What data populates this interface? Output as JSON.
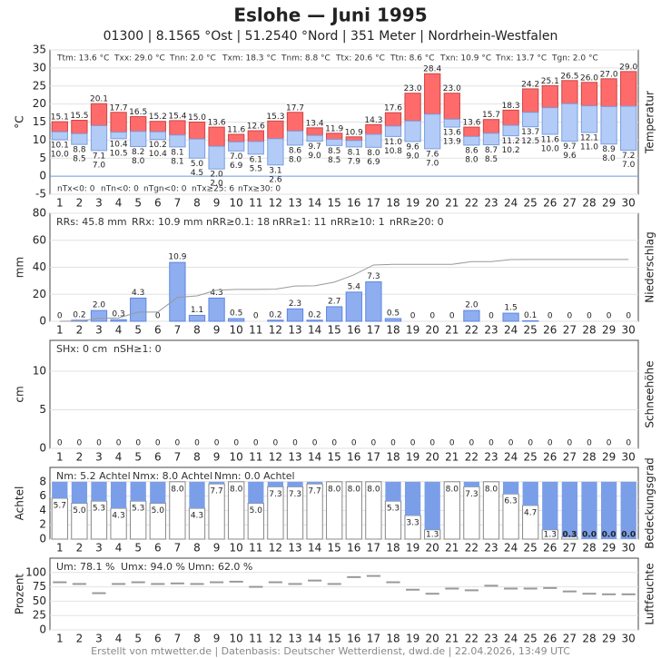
{
  "title": "Eslohe  —  Juni 1995",
  "subtitle": "01300  |  8.1565 °Ost  |  51.2540 °Nord  |  351 Meter  |  Nordrhein-Westfalen",
  "footer": "Erstellt von mtwetter.de | Datenbasis: Deutscher Wetterdienst, dwd.de | 22.04.2026, 13:49 UTC",
  "chart_data": [
    {
      "type": "rangebar",
      "title": "Temperatur",
      "ylabel": "°C",
      "ylim": [
        -5,
        35
      ],
      "yticks": [
        -5,
        0,
        5,
        10,
        15,
        20,
        25,
        30,
        35
      ],
      "grid": true,
      "annotations": [
        "Ttm: 13.6 °C",
        "Txx: 29.0 °C",
        "Tnn: 2.0 °C",
        "Txm: 18.3 °C",
        "Tnm: 8.8 °C",
        "Ttx: 20.6 °C",
        "Ttn: 8.6 °C",
        "Txn: 10.9 °C",
        "Tnx: 13.7 °C",
        "Tgn: 2.0 °C"
      ],
      "annotations_bottom": [
        "nTx<0: 0",
        "nTn<0: 0",
        "nTgn<0: 0",
        "nTx≥25: 6",
        "nTx≥30: 0"
      ],
      "categories": [
        1,
        2,
        3,
        4,
        5,
        6,
        7,
        8,
        9,
        10,
        11,
        12,
        13,
        14,
        15,
        16,
        17,
        18,
        19,
        20,
        21,
        22,
        23,
        24,
        25,
        26,
        27,
        28,
        29,
        30
      ],
      "series": [
        {
          "color": "#ff6b6b",
          "values": [
            15.1,
            15.5,
            20.1,
            17.7,
            16.5,
            15.2,
            15.4,
            15.0,
            13.6,
            11.6,
            12.6,
            15.3,
            17.7,
            13.4,
            11.9,
            10.9,
            14.3,
            17.6,
            23.0,
            28.4,
            23.0,
            13.6,
            15.7,
            18.3,
            24.2,
            25.1,
            26.5,
            26.0,
            27.0,
            29.0
          ],
          "value_labels": [
            "15.1",
            "15.5",
            "20.1",
            "17.7",
            "16.5",
            "15.2",
            "15.4",
            "15.0",
            "13.6",
            "11.6",
            "12.6",
            "15.3",
            "17.7",
            "13.4",
            "11.9",
            "10.9",
            "14.3",
            "17.6",
            "23.0",
            "28.4",
            "23.0",
            "13.6",
            "15.7",
            "18.3",
            "24.2",
            "25.1",
            "26.5",
            "26.0",
            "27.0",
            "29.0"
          ]
        },
        {
          "color": "#b3cbf7",
          "values": [
            12.3,
            11.8,
            14.0,
            12.2,
            12.4,
            12.3,
            11.4,
            10.3,
            8.3,
            9.5,
            9.6,
            10.4,
            12.5,
            11.3,
            10.2,
            9.9,
            11.6,
            13.9,
            15.3,
            17.2,
            15.8,
            11.0,
            11.9,
            14.1,
            17.7,
            19.0,
            20.1,
            19.5,
            19.3,
            19.4
          ]
        },
        {
          "color": "#5b8dd9",
          "values": [
            10.1,
            8.8,
            7.1,
            10.4,
            8.2,
            10.2,
            8.1,
            5.0,
            2.0,
            7.0,
            6.1,
            3.1,
            8.6,
            9.7,
            8.5,
            8.1,
            8.0,
            11.0,
            9.6,
            7.6,
            13.6,
            8.6,
            8.7,
            11.2,
            13.7,
            11.6,
            9.7,
            12.1,
            8.9,
            7.2
          ],
          "value_labels": [
            "10.1",
            "8.8",
            "7.1",
            "10.4",
            "8.2",
            "10.2",
            "8.1",
            "5.0",
            "2.0",
            "7.0",
            "6.1",
            "3.1",
            "8.6",
            "9.7",
            "8.5",
            "8.1",
            "8.0",
            "11.0",
            "9.6",
            "7.6",
            "13.6",
            "8.6",
            "8.7",
            "11.2",
            "13.7",
            "11.6",
            "9.7",
            "12.1",
            "8.9",
            "7.2"
          ]
        },
        {
          "color": "#8fb2e6",
          "values": [
            10.0,
            8.5,
            7.0,
            10.5,
            8.0,
            10.4,
            8.1,
            4.5,
            2.0,
            6.9,
            5.5,
            2.6,
            8.0,
            9.0,
            8.5,
            7.9,
            6.9,
            10.8,
            9.0,
            7.0,
            13.9,
            8.0,
            8.5,
            10.2,
            12.5,
            10.0,
            9.6,
            11.0,
            8.0,
            7.0
          ],
          "value_labels": [
            "10.0",
            "8.5",
            "7.0",
            "10.5",
            "8.0",
            "10.4",
            "8.1",
            "4.5",
            "2.0",
            "6.9",
            "5.5",
            "2.6",
            "8.0",
            "9.0",
            "8.5",
            "7.9",
            "6.9",
            "10.8",
            "9.0",
            "7.0",
            "13.9",
            "8.0",
            "8.5",
            "10.2",
            "12.5",
            "10.0",
            "9.6",
            "11.0",
            "8.0",
            "7.0"
          ]
        }
      ]
    },
    {
      "type": "bar",
      "title": "Niederschlag",
      "ylabel": "mm",
      "ylim": [
        0,
        80
      ],
      "yticks": [
        0,
        20,
        40,
        60,
        80
      ],
      "y2lim": [
        0,
        20
      ],
      "grid": true,
      "cumulative": true,
      "annotations": [
        "RRs: 45.8 mm",
        "RRx: 10.9 mm",
        "nRR≥0.1: 18",
        "nRR≥1: 11",
        "nRR≥10: 1",
        "nRR≥20: 0"
      ],
      "categories": [
        1,
        2,
        3,
        4,
        5,
        6,
        7,
        8,
        9,
        10,
        11,
        12,
        13,
        14,
        15,
        16,
        17,
        18,
        19,
        20,
        21,
        22,
        23,
        24,
        25,
        26,
        27,
        28,
        29,
        30
      ],
      "series": [
        {
          "color": "#8eaef0",
          "axis": "y2",
          "values": [
            0,
            0.2,
            2.0,
            0.3,
            4.3,
            0,
            10.9,
            1.1,
            4.3,
            0.5,
            0,
            0.2,
            2.3,
            0.2,
            2.7,
            5.4,
            7.3,
            0.5,
            0,
            0,
            0,
            2.0,
            0,
            1.5,
            0.1,
            0,
            0,
            0,
            0,
            0
          ],
          "value_labels": [
            "0",
            "0.2",
            "2.0",
            "0.3",
            "4.3",
            "0",
            "10.9",
            "1.1",
            "4.3",
            "0.5",
            "0",
            "0.2",
            "2.3",
            "0.2",
            "2.7",
            "5.4",
            "7.3",
            "0.5",
            "0",
            "0",
            "0",
            "2.0",
            "0",
            "1.5",
            "0.1",
            "0",
            "0",
            "0",
            "0",
            "0"
          ]
        }
      ]
    },
    {
      "type": "bar",
      "title": "Schneehöhe",
      "ylabel": "cm",
      "ylim": [
        0,
        14
      ],
      "yticks": [
        0,
        5,
        10
      ],
      "grid": true,
      "annotations": [
        "SHx: 0 cm",
        "nSH≥1: 0"
      ],
      "categories": [
        1,
        2,
        3,
        4,
        5,
        6,
        7,
        8,
        9,
        10,
        11,
        12,
        13,
        14,
        15,
        16,
        17,
        18,
        19,
        20,
        21,
        22,
        23,
        24,
        25,
        26,
        27,
        28,
        29,
        30
      ],
      "series": [
        {
          "color": "#8eaef0",
          "values": [
            0,
            0,
            0,
            0,
            0,
            0,
            0,
            0,
            0,
            0,
            0,
            0,
            0,
            0,
            0,
            0,
            0,
            0,
            0,
            0,
            0,
            0,
            0,
            0,
            0,
            0,
            0,
            0,
            0,
            0
          ]
        }
      ]
    },
    {
      "type": "cover",
      "title": "Bedeckungsgrad",
      "ylabel": "Achtel",
      "ylim": [
        0,
        10
      ],
      "yticks": [
        0,
        2,
        4,
        6,
        8
      ],
      "grid": true,
      "annotations": [
        "Nm: 5.2 Achtel",
        "Nmx: 8.0 Achtel",
        "Nmn: 0.0 Achtel"
      ],
      "categories": [
        1,
        2,
        3,
        4,
        5,
        6,
        7,
        8,
        9,
        10,
        11,
        12,
        13,
        14,
        15,
        16,
        17,
        18,
        19,
        20,
        21,
        22,
        23,
        24,
        25,
        26,
        27,
        28,
        29,
        30
      ],
      "series": [
        {
          "color": "#7b9ee8",
          "values": [
            5.7,
            5.0,
            5.3,
            4.3,
            5.3,
            5.0,
            8.0,
            4.3,
            7.7,
            8.0,
            5.0,
            7.3,
            7.3,
            7.7,
            8.0,
            8.0,
            8.0,
            5.3,
            3.3,
            1.3,
            8.0,
            7.3,
            8.0,
            6.3,
            4.7,
            1.3,
            0.3,
            0.0,
            0.0,
            0.0
          ],
          "value_labels": [
            "5.7",
            "5.0",
            "5.3",
            "4.3",
            "5.3",
            "5.0",
            "8.0",
            "4.3",
            "7.7",
            "8.0",
            "5.0",
            "7.3",
            "7.3",
            "7.7",
            "8.0",
            "8.0",
            "8.0",
            "5.3",
            "3.3",
            "1.3",
            "8.0",
            "7.3",
            "8.0",
            "6.3",
            "4.7",
            "1.3",
            "0.3",
            "0.0",
            "0.0",
            "0.0"
          ]
        }
      ]
    },
    {
      "type": "dash",
      "title": "Luftfeuchte",
      "ylabel": "Prozent",
      "ylim": [
        0,
        125
      ],
      "yticks": [
        0,
        25,
        50,
        75,
        100
      ],
      "grid": true,
      "annotations": [
        "Um: 78.1 %",
        "Umx: 94.0 %",
        "Umn: 62.0 %"
      ],
      "categories": [
        1,
        2,
        3,
        4,
        5,
        6,
        7,
        8,
        9,
        10,
        11,
        12,
        13,
        14,
        15,
        16,
        17,
        18,
        19,
        20,
        21,
        22,
        23,
        24,
        25,
        26,
        27,
        28,
        29,
        30
      ],
      "series": [
        {
          "color": "#999999",
          "values": [
            83,
            80,
            64,
            80,
            83,
            80,
            81,
            80,
            83,
            84,
            75,
            83,
            80,
            86,
            80,
            92,
            94,
            83,
            70,
            63,
            72,
            69,
            77,
            72,
            72,
            73,
            67,
            63,
            62,
            62
          ]
        }
      ]
    }
  ]
}
